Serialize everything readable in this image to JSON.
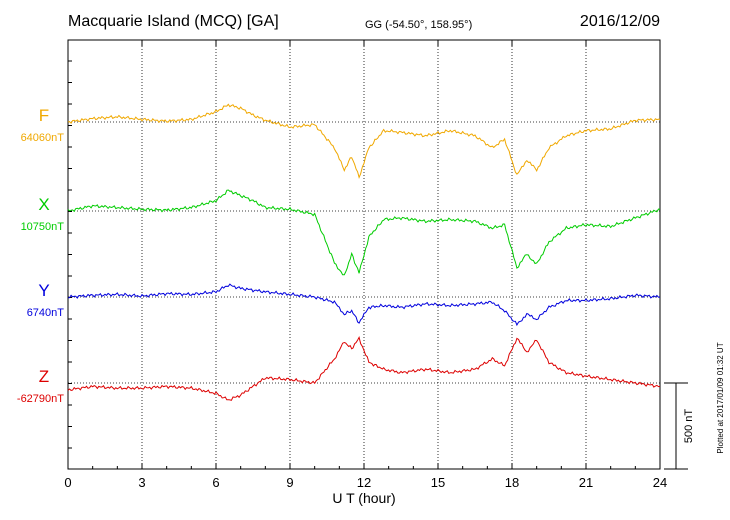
{
  "header": {
    "station": "Macquarie Island (MCQ)  [GA]",
    "coords": "GG (-54.50°, 158.95°)",
    "date": "2016/12/09"
  },
  "footer": {
    "plotted": "Plotted at 2017/01/09 01:32 UT"
  },
  "chart_data": {
    "type": "line",
    "title": "Macquarie Island (MCQ)  [GA]",
    "xlabel": "U T (hour)",
    "ylabel": "",
    "xlim": [
      0,
      24
    ],
    "xticks": [
      0,
      3,
      6,
      9,
      12,
      15,
      18,
      21,
      24
    ],
    "xtick_labels": [
      "0",
      "3",
      "6",
      "9",
      "12",
      "15",
      "18",
      "21",
      "24"
    ],
    "grid": true,
    "scale_bar": {
      "label": "500 nT",
      "value_nT": 500
    },
    "series": [
      {
        "name": "F",
        "baseline_label": "64060nT",
        "baseline_nT": 64060,
        "color": "#f0a800",
        "x": [
          0,
          1,
          2,
          3,
          4,
          5,
          6,
          6.5,
          7,
          7.5,
          8,
          9,
          10,
          10.8,
          11.2,
          11.5,
          11.8,
          12.2,
          12.8,
          13.5,
          14.5,
          15.5,
          16.5,
          17.2,
          17.7,
          18.2,
          18.6,
          19,
          19.5,
          20.2,
          21,
          22,
          23,
          24
        ],
        "y": [
          0,
          20,
          30,
          15,
          5,
          15,
          60,
          100,
          80,
          40,
          10,
          -30,
          -15,
          -150,
          -280,
          -200,
          -320,
          -150,
          -50,
          -60,
          -80,
          -50,
          -80,
          -150,
          -100,
          -310,
          -220,
          -280,
          -150,
          -80,
          -50,
          -40,
          10,
          15
        ]
      },
      {
        "name": "X",
        "baseline_label": "10750nT",
        "baseline_nT": 10750,
        "color": "#00cc00",
        "x": [
          0,
          1,
          2,
          3,
          4,
          5,
          6,
          6.5,
          7,
          7.5,
          8,
          9,
          10,
          10.8,
          11.2,
          11.5,
          11.8,
          12.2,
          12.8,
          13.5,
          14.5,
          15.5,
          16.5,
          17.2,
          17.7,
          18.2,
          18.6,
          19,
          19.5,
          20.2,
          21,
          22,
          23,
          24
        ],
        "y": [
          0,
          30,
          20,
          10,
          5,
          20,
          60,
          120,
          90,
          60,
          20,
          10,
          -20,
          -300,
          -380,
          -250,
          -360,
          -150,
          -50,
          -40,
          -60,
          -50,
          -60,
          -100,
          -80,
          -330,
          -250,
          -310,
          -180,
          -100,
          -80,
          -90,
          -40,
          10
        ]
      },
      {
        "name": "Y",
        "baseline_label": "6740nT",
        "baseline_nT": 6740,
        "color": "#0000dd",
        "x": [
          0,
          1,
          2,
          3,
          4,
          5,
          6,
          6.5,
          7,
          7.5,
          8,
          9,
          10,
          10.8,
          11.2,
          11.5,
          11.8,
          12.2,
          12.8,
          13.5,
          14.5,
          15.5,
          16.5,
          17.2,
          17.7,
          18.2,
          18.6,
          19,
          19.5,
          20.2,
          21,
          22,
          23,
          24
        ],
        "y": [
          0,
          10,
          15,
          5,
          20,
          15,
          30,
          70,
          50,
          40,
          30,
          15,
          0,
          -30,
          -100,
          -80,
          -150,
          -60,
          -50,
          -60,
          -40,
          -50,
          -40,
          -30,
          -80,
          -160,
          -100,
          -130,
          -60,
          -20,
          -20,
          -10,
          10,
          0
        ]
      },
      {
        "name": "Z",
        "baseline_label": "-62790nT",
        "baseline_nT": -62790,
        "color": "#dd0000",
        "x": [
          0,
          1,
          2,
          3,
          4,
          5,
          6,
          6.5,
          7,
          7.5,
          8,
          9,
          10,
          10.8,
          11.2,
          11.5,
          11.8,
          12.2,
          12.8,
          13.5,
          14.5,
          15.5,
          16.5,
          17.2,
          17.7,
          18.2,
          18.6,
          19,
          19.5,
          20.2,
          21,
          22,
          23,
          24
        ],
        "y": [
          -40,
          -20,
          -30,
          -30,
          -20,
          -30,
          -60,
          -100,
          -70,
          -20,
          30,
          20,
          0,
          140,
          240,
          200,
          260,
          120,
          80,
          60,
          80,
          60,
          80,
          140,
          100,
          260,
          180,
          250,
          120,
          60,
          40,
          20,
          0,
          -20
        ]
      }
    ]
  }
}
